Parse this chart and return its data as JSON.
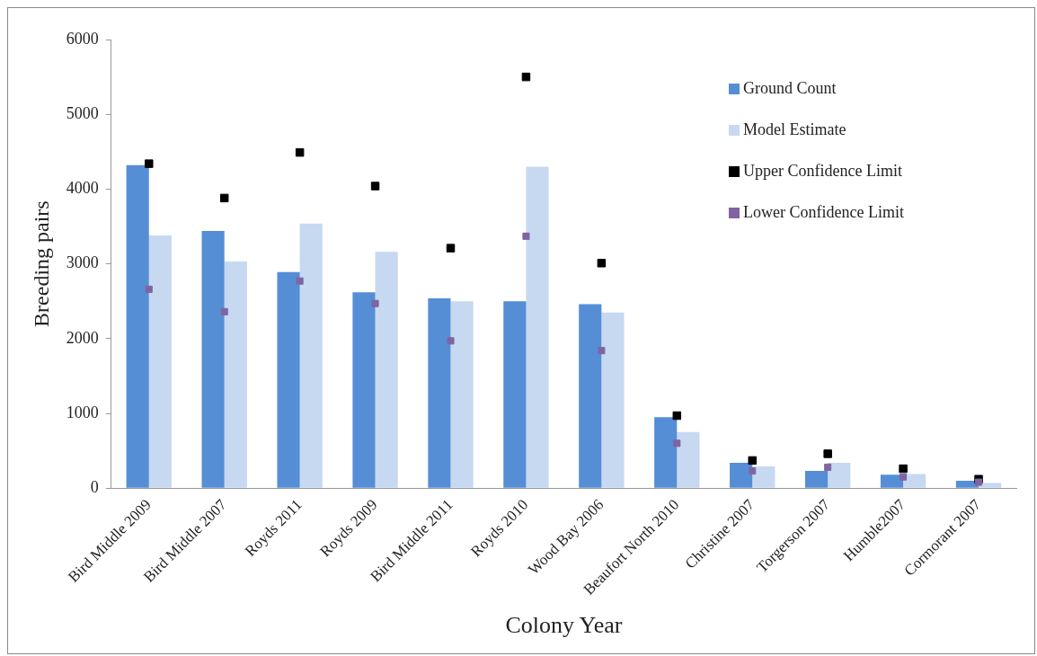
{
  "chart_data": {
    "type": "bar",
    "xlabel": "Colony Year",
    "ylabel": "Breeding pairs",
    "categories": [
      "Bird Middle 2009",
      "Bird Middle 2007",
      "Royds 2011",
      "Royds 2009",
      "Bird Middle 2011",
      "Royds 2010",
      "Wood Bay 2006",
      "Beaufort North 2010",
      "Christine 2007",
      "Torgerson 2007",
      "Humble2007",
      "Cormorant 2007"
    ],
    "series": [
      {
        "name": "Ground Count",
        "color": "#558ed5",
        "values": [
          4320,
          3440,
          2890,
          2620,
          2540,
          2500,
          2460,
          950,
          340,
          230,
          180,
          100
        ]
      },
      {
        "name": "Model Estimate",
        "color": "#c6d9f1",
        "values": [
          3380,
          3030,
          3540,
          3160,
          2500,
          4300,
          2350,
          750,
          290,
          340,
          190,
          70
        ]
      },
      {
        "name": "Upper Confidence Limit",
        "type": "scatter",
        "marker": "square",
        "color": "#000000",
        "values": [
          4340,
          3880,
          4490,
          4040,
          3210,
          5500,
          3010,
          970,
          370,
          460,
          260,
          120
        ]
      },
      {
        "name": "Lower Confidence Limit",
        "type": "scatter",
        "marker": "square",
        "color": "#8064a2",
        "values": [
          2660,
          2360,
          2770,
          2470,
          1970,
          3370,
          1840,
          600,
          230,
          280,
          150,
          80
        ]
      }
    ],
    "ylim": [
      0,
      6000
    ],
    "yticks": [
      0,
      1000,
      2000,
      3000,
      4000,
      5000,
      6000
    ],
    "grid": false,
    "legend": "top right"
  }
}
